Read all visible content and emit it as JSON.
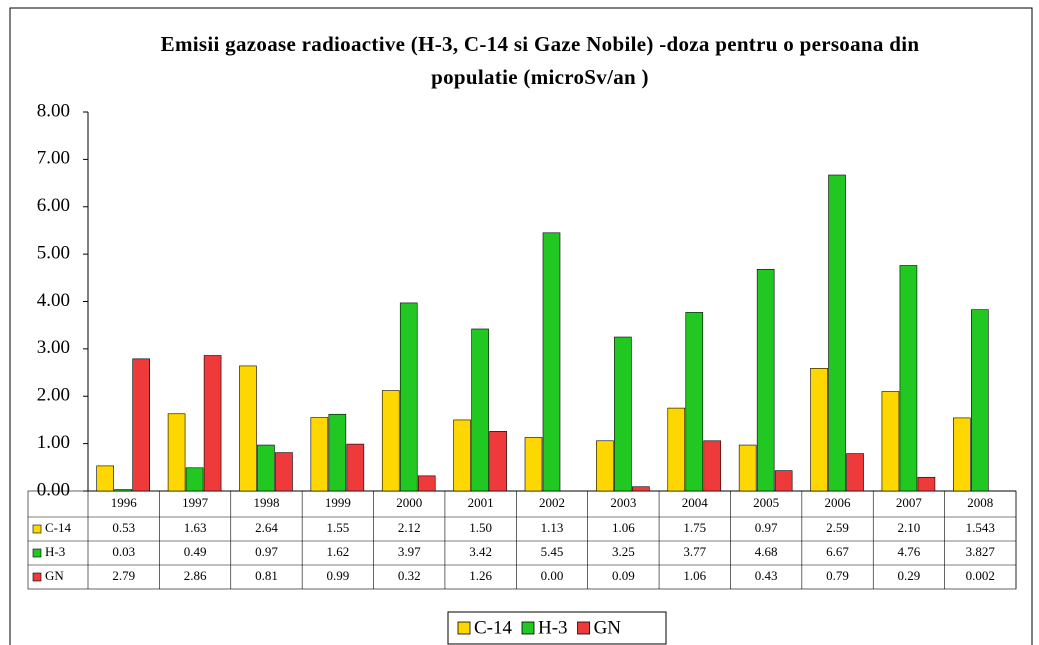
{
  "chart_data": {
    "type": "bar",
    "title": "Emisii gazoase radioactive (H-3, C-14 si Gaze Nobile) -doza pentru o persoana din populatie (microSv/an )",
    "categories": [
      "1996",
      "1997",
      "1998",
      "1999",
      "2000",
      "2001",
      "2002",
      "2003",
      "2004",
      "2005",
      "2006",
      "2007",
      "2008"
    ],
    "series": [
      {
        "name": "C-14",
        "color": "#ffd700",
        "values": [
          0.53,
          1.63,
          2.64,
          1.55,
          2.12,
          1.5,
          1.13,
          1.06,
          1.75,
          0.97,
          2.59,
          2.1,
          1.543
        ],
        "value_labels": [
          "0.53",
          "1.63",
          "2.64",
          "1.55",
          "2.12",
          "1.50",
          "1.13",
          "1.06",
          "1.75",
          "0.97",
          "2.59",
          "2.10",
          "1.543"
        ]
      },
      {
        "name": "H-3",
        "color": "#22c822",
        "values": [
          0.03,
          0.49,
          0.97,
          1.62,
          3.97,
          3.42,
          5.45,
          3.25,
          3.77,
          4.68,
          6.67,
          4.76,
          3.827
        ],
        "value_labels": [
          "0.03",
          "0.49",
          "0.97",
          "1.62",
          "3.97",
          "3.42",
          "5.45",
          "3.25",
          "3.77",
          "4.68",
          "6.67",
          "4.76",
          "3.827"
        ]
      },
      {
        "name": "GN",
        "color": "#ee3a3a",
        "values": [
          2.79,
          2.86,
          0.81,
          0.99,
          0.32,
          1.26,
          0.0,
          0.09,
          1.06,
          0.43,
          0.79,
          0.29,
          0.002
        ],
        "value_labels": [
          "2.79",
          "2.86",
          "0.81",
          "0.99",
          "0.32",
          "1.26",
          "0.00",
          "0.09",
          "1.06",
          "0.43",
          "0.79",
          "0.29",
          "0.002"
        ]
      }
    ],
    "ylim": [
      0,
      8
    ],
    "yticks": [
      {
        "value": 0,
        "label": "0.00"
      },
      {
        "value": 1,
        "label": "1.00"
      },
      {
        "value": 2,
        "label": "2.00"
      },
      {
        "value": 3,
        "label": "3.00"
      },
      {
        "value": 4,
        "label": "4.00"
      },
      {
        "value": 5,
        "label": "5.00"
      },
      {
        "value": 6,
        "label": "6.00"
      },
      {
        "value": 7,
        "label": "7.00"
      },
      {
        "value": 8,
        "label": "8.00"
      }
    ],
    "grid": false
  }
}
